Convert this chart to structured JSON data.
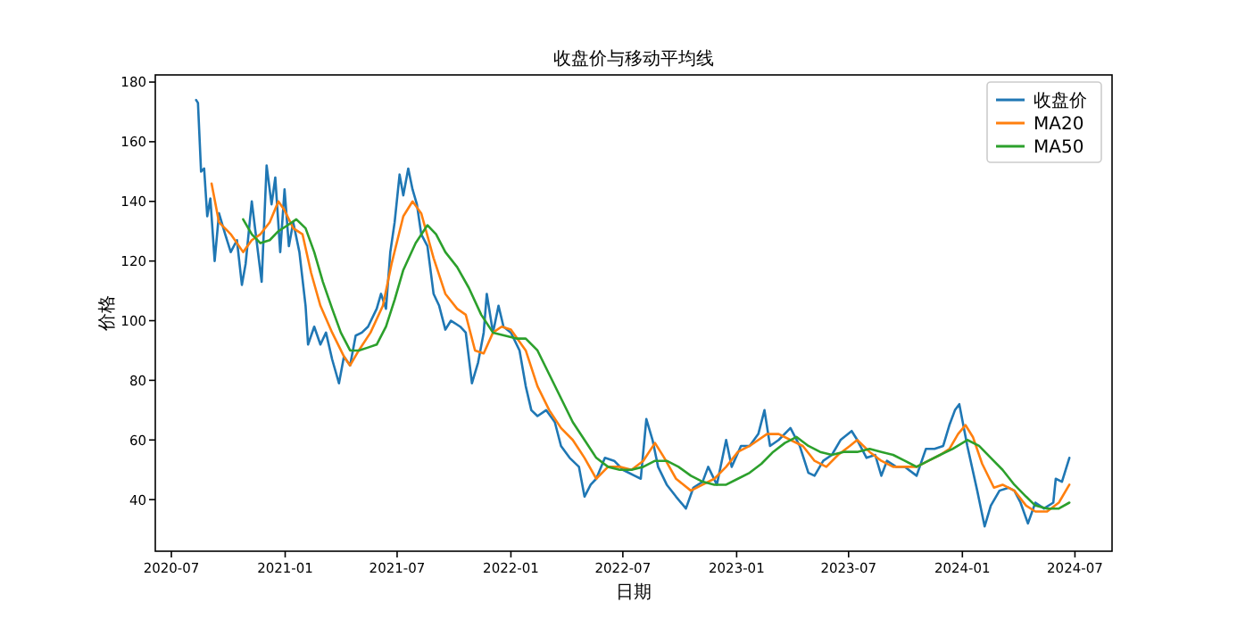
{
  "chart_data": {
    "type": "line",
    "title": "收盘价与移动平均线",
    "xlabel": "日期",
    "ylabel": "价格",
    "legend": "top right",
    "xlim": [
      "2020-06-05",
      "2024-08-30"
    ],
    "ylim": [
      22.7,
      182.4
    ],
    "xticks": [
      "2020-07",
      "2021-01",
      "2021-07",
      "2022-01",
      "2022-07",
      "2023-01",
      "2023-07",
      "2024-01",
      "2024-07"
    ],
    "yticks": [
      40,
      60,
      80,
      100,
      120,
      140,
      160,
      180
    ],
    "series": [
      {
        "name": "收盘价",
        "color": "#1f77b4",
        "x": [
          "2020-08-10",
          "2020-08-13",
          "2020-08-18",
          "2020-08-23",
          "2020-08-28",
          "2020-09-02",
          "2020-09-06",
          "2020-09-09",
          "2020-09-16",
          "2020-09-26",
          "2020-10-05",
          "2020-10-15",
          "2020-10-23",
          "2020-10-29",
          "2020-11-08",
          "2020-11-18",
          "2020-11-24",
          "2020-12-02",
          "2020-12-10",
          "2020-12-16",
          "2020-12-24",
          "2020-12-31",
          "2021-01-07",
          "2021-01-14",
          "2021-01-24",
          "2021-02-03",
          "2021-02-07",
          "2021-02-17",
          "2021-02-27",
          "2021-03-08",
          "2021-03-18",
          "2021-03-29",
          "2021-04-06",
          "2021-04-16",
          "2021-04-25",
          "2021-05-05",
          "2021-05-15",
          "2021-05-29",
          "2021-06-05",
          "2021-06-13",
          "2021-06-20",
          "2021-06-27",
          "2021-07-05",
          "2021-07-11",
          "2021-07-19",
          "2021-07-26",
          "2021-08-02",
          "2021-08-09",
          "2021-08-19",
          "2021-08-29",
          "2021-09-07",
          "2021-09-17",
          "2021-09-26",
          "2021-10-11",
          "2021-10-20",
          "2021-10-30",
          "2021-11-09",
          "2021-11-18",
          "2021-11-23",
          "2021-12-03",
          "2021-12-12",
          "2021-12-20",
          "2022-01-01",
          "2022-01-15",
          "2022-01-25",
          "2022-02-03",
          "2022-02-13",
          "2022-02-27",
          "2022-03-13",
          "2022-03-23",
          "2022-04-06",
          "2022-04-21",
          "2022-04-30",
          "2022-05-10",
          "2022-05-19",
          "2022-06-02",
          "2022-06-17",
          "2022-07-01",
          "2022-07-20",
          "2022-07-30",
          "2022-08-08",
          "2022-08-18",
          "2022-08-27",
          "2022-09-10",
          "2022-09-25",
          "2022-10-11",
          "2022-10-23",
          "2022-11-07",
          "2022-11-16",
          "2022-11-30",
          "2022-12-15",
          "2022-12-24",
          "2023-01-08",
          "2023-01-22",
          "2023-02-05",
          "2023-02-15",
          "2023-02-24",
          "2023-03-10",
          "2023-03-29",
          "2023-04-13",
          "2023-04-27",
          "2023-05-07",
          "2023-05-21",
          "2023-06-04",
          "2023-06-18",
          "2023-07-06",
          "2023-07-15",
          "2023-07-30",
          "2023-08-13",
          "2023-08-23",
          "2023-09-01",
          "2023-09-16",
          "2023-09-30",
          "2023-10-19",
          "2023-11-03",
          "2023-11-17",
          "2023-12-01",
          "2023-12-11",
          "2023-12-20",
          "2023-12-27",
          "2024-01-09",
          "2024-01-25",
          "2024-02-06",
          "2024-02-16",
          "2024-03-01",
          "2024-03-16",
          "2024-03-25",
          "2024-04-04",
          "2024-04-16",
          "2024-04-28",
          "2024-05-12",
          "2024-05-27",
          "2024-05-31",
          "2024-06-10",
          "2024-06-22"
        ],
        "values": [
          174,
          173,
          150,
          151,
          135,
          141,
          129,
          120,
          136,
          129,
          123,
          127,
          112,
          119,
          140,
          123,
          113,
          152,
          139,
          148,
          123,
          144,
          125,
          133,
          123,
          105,
          92,
          98,
          92,
          96,
          87,
          79,
          88,
          85,
          95,
          96,
          98,
          104,
          109,
          104,
          123,
          133,
          149,
          142,
          151,
          144,
          139,
          129,
          125,
          109,
          105,
          97,
          100,
          98,
          96,
          79,
          86,
          96,
          109,
          96,
          105,
          98,
          96,
          90,
          78,
          70,
          68,
          70,
          66,
          58,
          54,
          51,
          41,
          45,
          47,
          54,
          53,
          50,
          48,
          47,
          67,
          60,
          51,
          45,
          41,
          37,
          44,
          46,
          51,
          45,
          60,
          51,
          58,
          58,
          62,
          70,
          58,
          60,
          64,
          58,
          49,
          48,
          53,
          55,
          60,
          63,
          60,
          54,
          55,
          48,
          53,
          51,
          51,
          48,
          57,
          57,
          58,
          65,
          70,
          72,
          58,
          43,
          31,
          38,
          43,
          44,
          43,
          39,
          32,
          39,
          37,
          39,
          47,
          46,
          54
        ]
      },
      {
        "name": "MA20",
        "color": "#ff7f0e",
        "x": [
          "2020-09-04",
          "2020-09-16",
          "2020-10-05",
          "2020-10-25",
          "2020-11-08",
          "2020-11-22",
          "2020-12-07",
          "2020-12-21",
          "2020-12-31",
          "2021-01-14",
          "2021-01-29",
          "2021-02-12",
          "2021-02-27",
          "2021-03-18",
          "2021-04-06",
          "2021-04-16",
          "2021-04-30",
          "2021-05-19",
          "2021-06-08",
          "2021-06-22",
          "2021-07-11",
          "2021-07-26",
          "2021-08-09",
          "2021-08-29",
          "2021-09-17",
          "2021-10-06",
          "2021-10-20",
          "2021-11-04",
          "2021-11-18",
          "2021-12-03",
          "2021-12-17",
          "2022-01-01",
          "2022-01-25",
          "2022-02-13",
          "2022-03-04",
          "2022-03-23",
          "2022-04-11",
          "2022-04-30",
          "2022-05-19",
          "2022-06-07",
          "2022-06-26",
          "2022-07-15",
          "2022-08-03",
          "2022-08-22",
          "2022-09-06",
          "2022-09-25",
          "2022-10-19",
          "2022-11-07",
          "2022-11-26",
          "2022-12-15",
          "2023-01-03",
          "2023-01-22",
          "2023-02-19",
          "2023-03-10",
          "2023-03-29",
          "2023-04-18",
          "2023-05-07",
          "2023-05-26",
          "2023-06-14",
          "2023-07-03",
          "2023-07-15",
          "2023-08-04",
          "2023-08-23",
          "2023-09-11",
          "2023-09-30",
          "2023-10-19",
          "2023-11-07",
          "2023-11-26",
          "2023-12-11",
          "2023-12-25",
          "2024-01-06",
          "2024-01-18",
          "2024-02-02",
          "2024-02-21",
          "2024-03-06",
          "2024-03-25",
          "2024-04-13",
          "2024-04-28",
          "2024-05-17",
          "2024-06-05",
          "2024-06-22"
        ],
        "values": [
          146,
          133,
          129,
          123,
          127,
          129,
          133,
          140,
          137,
          131,
          129,
          116,
          105,
          96,
          88,
          85,
          90,
          96,
          105,
          119,
          135,
          140,
          136,
          121,
          109,
          104,
          102,
          90,
          89,
          96,
          98,
          97,
          90,
          78,
          70,
          64,
          60,
          54,
          47,
          51,
          51,
          50,
          53,
          59,
          54,
          47,
          43,
          45,
          47,
          51,
          56,
          58,
          62,
          62,
          60,
          58,
          53,
          51,
          55,
          58,
          60,
          56,
          53,
          51,
          51,
          51,
          53,
          55,
          57,
          62,
          65,
          61,
          52,
          44,
          45,
          43,
          38,
          36,
          36,
          39,
          45
        ]
      },
      {
        "name": "MA50",
        "color": "#2ca02c",
        "x": [
          "2020-10-25",
          "2020-11-08",
          "2020-11-22",
          "2020-12-07",
          "2020-12-21",
          "2021-01-05",
          "2021-01-19",
          "2021-02-03",
          "2021-02-17",
          "2021-03-03",
          "2021-03-18",
          "2021-04-01",
          "2021-04-16",
          "2021-04-30",
          "2021-05-15",
          "2021-05-29",
          "2021-06-13",
          "2021-06-27",
          "2021-07-11",
          "2021-07-31",
          "2021-08-19",
          "2021-09-02",
          "2021-09-17",
          "2021-10-06",
          "2021-10-25",
          "2021-11-14",
          "2021-12-03",
          "2021-12-22",
          "2022-01-10",
          "2022-01-25",
          "2022-02-13",
          "2022-03-04",
          "2022-03-23",
          "2022-04-11",
          "2022-04-30",
          "2022-05-19",
          "2022-06-07",
          "2022-06-26",
          "2022-07-15",
          "2022-08-03",
          "2022-08-22",
          "2022-09-10",
          "2022-09-29",
          "2022-10-19",
          "2022-11-07",
          "2022-11-26",
          "2022-12-15",
          "2023-01-03",
          "2023-01-22",
          "2023-02-10",
          "2023-03-01",
          "2023-03-20",
          "2023-04-08",
          "2023-04-27",
          "2023-05-16",
          "2023-06-04",
          "2023-06-23",
          "2023-07-15",
          "2023-08-04",
          "2023-08-23",
          "2023-09-11",
          "2023-09-30",
          "2023-10-19",
          "2023-11-07",
          "2023-11-26",
          "2023-12-16",
          "2024-01-09",
          "2024-01-28",
          "2024-02-16",
          "2024-03-06",
          "2024-03-25",
          "2024-04-13",
          "2024-04-28",
          "2024-05-17",
          "2024-06-05",
          "2024-06-22"
        ],
        "values": [
          134,
          129,
          126,
          127,
          130,
          132,
          134,
          131,
          123,
          113,
          104,
          96,
          90,
          90,
          91,
          92,
          98,
          107,
          117,
          126,
          132,
          129,
          123,
          118,
          111,
          102,
          96,
          95,
          94,
          94,
          90,
          82,
          74,
          66,
          60,
          54,
          51,
          50,
          50,
          51,
          53,
          53,
          51,
          48,
          46,
          45,
          45,
          47,
          49,
          52,
          56,
          59,
          61,
          58,
          56,
          55,
          56,
          56,
          57,
          56,
          55,
          53,
          51,
          53,
          55,
          57,
          60,
          58,
          54,
          50,
          45,
          41,
          38,
          37,
          37,
          39
        ]
      }
    ]
  }
}
